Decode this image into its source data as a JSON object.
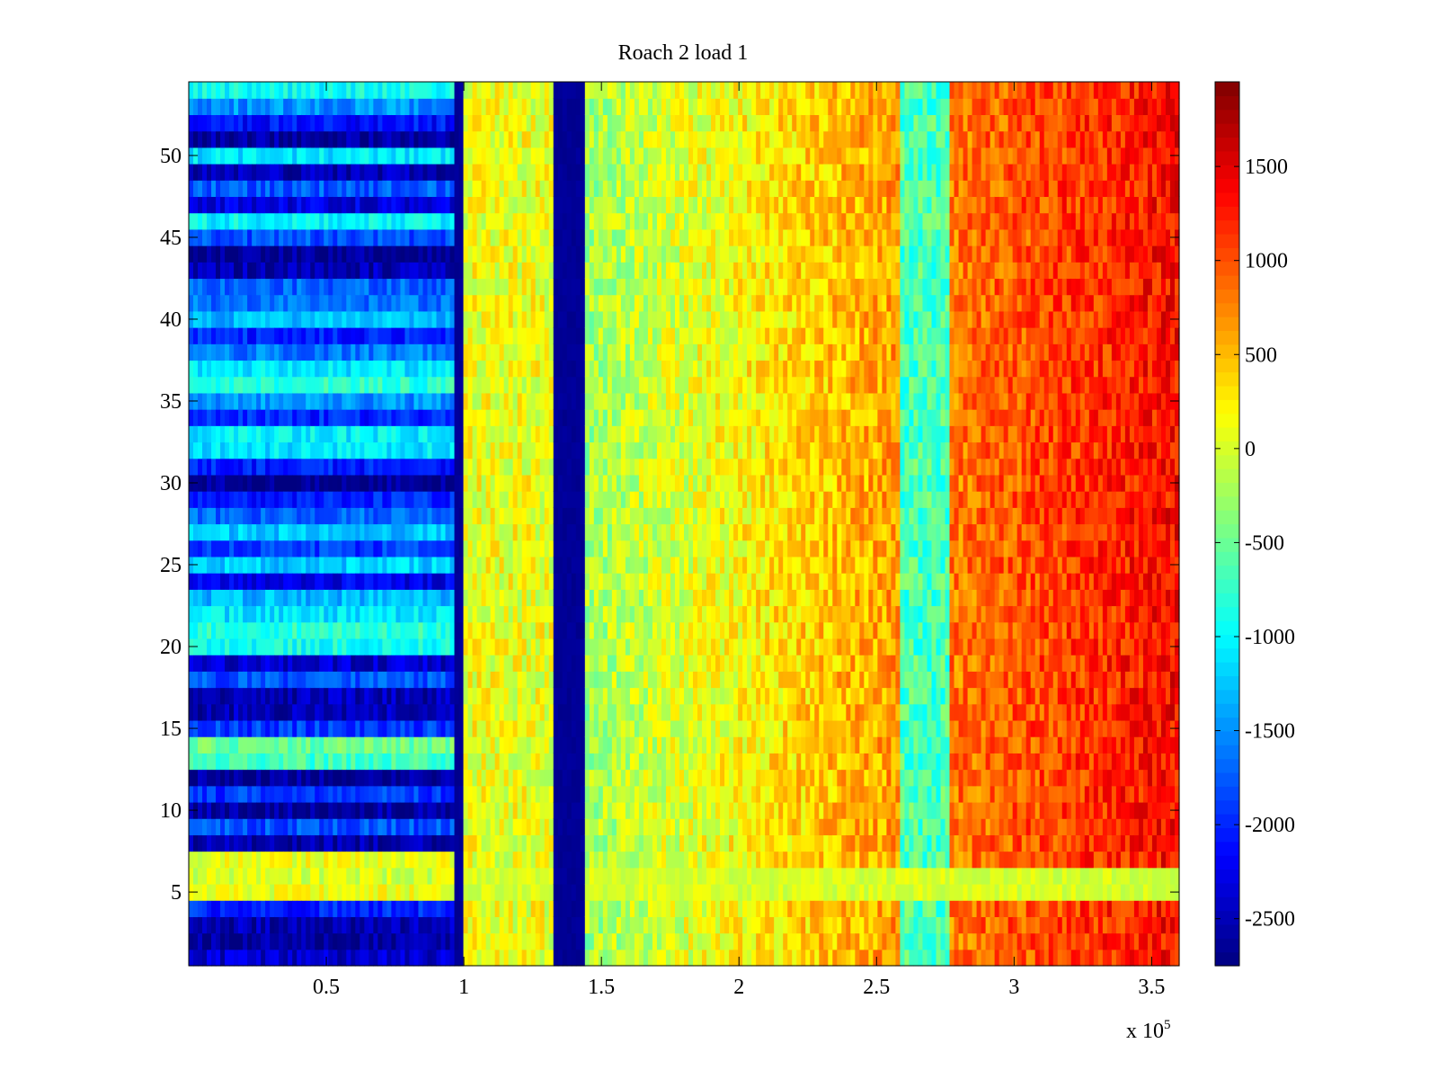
{
  "chart_data": {
    "type": "heatmap",
    "title": "Roach 2 load 1",
    "xlabel": "",
    "ylabel": "",
    "x_multiplier_label": "x 10",
    "x_multiplier_exponent": "5",
    "xlim": [
      0.0,
      3.6
    ],
    "ylim": [
      0.5,
      54.5
    ],
    "x_ticks": [
      0.5,
      1,
      1.5,
      2,
      2.5,
      3,
      3.5
    ],
    "x_tick_labels": [
      "0.5",
      "1",
      "1.5",
      "2",
      "2.5",
      "3",
      "3.5"
    ],
    "y_ticks": [
      5,
      10,
      15,
      20,
      25,
      30,
      35,
      40,
      45,
      50
    ],
    "y_tick_labels": [
      "5",
      "10",
      "15",
      "20",
      "25",
      "30",
      "35",
      "40",
      "45",
      "50"
    ],
    "colorbar": {
      "colormap": "jet",
      "range": [
        -2750,
        1950
      ],
      "ticks": [
        -2500,
        -2000,
        -1500,
        -1000,
        -500,
        0,
        500,
        1000,
        1500
      ],
      "tick_labels": [
        "-2500",
        "-2000",
        "-1500",
        "-1000",
        "-500",
        "0",
        "500",
        "1000",
        "1500"
      ]
    },
    "column_regions": [
      {
        "x_start": 0.0,
        "x_end": 0.97,
        "kind": "row_banded"
      },
      {
        "x_start": 0.97,
        "x_end": 1.0,
        "kind": "constant",
        "value": -2650
      },
      {
        "x_start": 1.0,
        "x_end": 1.32,
        "kind": "uniform",
        "value": 100
      },
      {
        "x_start": 1.32,
        "x_end": 1.44,
        "kind": "constant",
        "value": -2650
      },
      {
        "x_start": 1.44,
        "x_end": 2.58,
        "kind": "ramp",
        "value_start": -250,
        "value_end": 650
      },
      {
        "x_start": 2.58,
        "x_end": 2.76,
        "kind": "uniform",
        "value": -650
      },
      {
        "x_start": 2.76,
        "x_end": 3.6,
        "kind": "ramp",
        "value_start": 800,
        "value_end": 1350
      }
    ],
    "left_region_row_values": [
      -2400,
      -2600,
      -2500,
      -2000,
      100,
      0,
      100,
      -2550,
      -1800,
      -2600,
      -1900,
      -2650,
      -700,
      -500,
      -1900,
      -2500,
      -2500,
      -1800,
      -2400,
      -900,
      -800,
      -1100,
      -1300,
      -2250,
      -1200,
      -1900,
      -1250,
      -1700,
      -2000,
      -2650,
      -2050,
      -1100,
      -1050,
      -2000,
      -1500,
      -800,
      -1100,
      -1600,
      -2000,
      -1300,
      -1650,
      -1700,
      -2500,
      -2650,
      -1800,
      -1000,
      -2300,
      -1750,
      -2500,
      -1100,
      -2600,
      -2100,
      -1500,
      -950
    ]
  }
}
